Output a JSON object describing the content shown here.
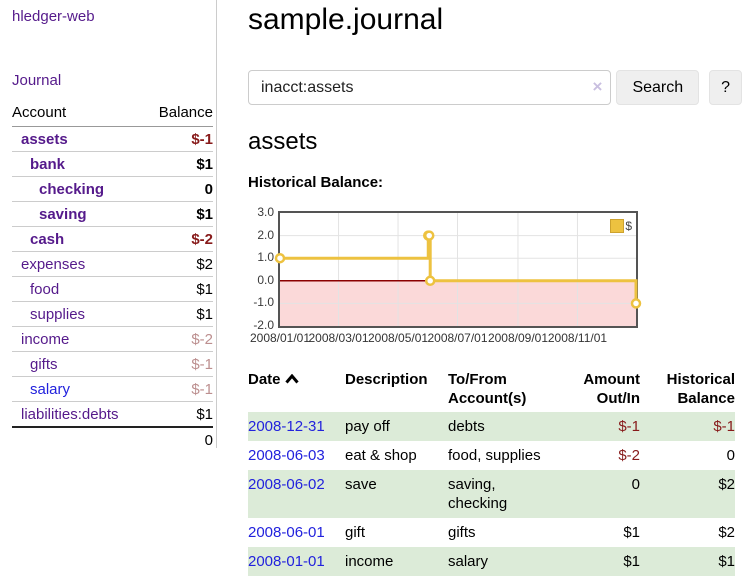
{
  "app": {
    "title": "hledger-web",
    "nav_journal": "Journal"
  },
  "sidebar": {
    "headers": {
      "account": "Account",
      "balance": "Balance"
    },
    "accounts": [
      {
        "name": "assets",
        "depth": 1,
        "bold": true,
        "link": "purple",
        "balance": "$-1",
        "bclass": "neg"
      },
      {
        "name": "bank",
        "depth": 2,
        "bold": true,
        "link": "purple",
        "balance": "$1",
        "bclass": ""
      },
      {
        "name": "checking",
        "depth": 3,
        "bold": true,
        "link": "purple",
        "balance": "0",
        "bclass": ""
      },
      {
        "name": "saving",
        "depth": 3,
        "bold": true,
        "link": "purple",
        "balance": "$1",
        "bclass": ""
      },
      {
        "name": "cash",
        "depth": 2,
        "bold": true,
        "link": "purple",
        "balance": "$-2",
        "bclass": "neg"
      },
      {
        "name": "expenses",
        "depth": 1,
        "bold": false,
        "link": "purple",
        "balance": "$2",
        "bclass": ""
      },
      {
        "name": "food",
        "depth": 2,
        "bold": false,
        "link": "purple",
        "balance": "$1",
        "bclass": ""
      },
      {
        "name": "supplies",
        "depth": 2,
        "bold": false,
        "link": "purple",
        "balance": "$1",
        "bclass": ""
      },
      {
        "name": "income",
        "depth": 1,
        "bold": false,
        "link": "purple",
        "balance": "$-2",
        "bclass": "faded"
      },
      {
        "name": "gifts",
        "depth": 2,
        "bold": false,
        "link": "purple",
        "balance": "$-1",
        "bclass": "faded"
      },
      {
        "name": "salary",
        "depth": 2,
        "bold": false,
        "link": "blue",
        "balance": "$-1",
        "bclass": "faded"
      },
      {
        "name": "liabilities:debts",
        "depth": 1,
        "bold": false,
        "link": "purple",
        "balance": "$1",
        "bclass": ""
      }
    ],
    "total": "0"
  },
  "header": {
    "title": "sample.journal"
  },
  "search": {
    "value": "inacct:assets",
    "clear_icon": "×",
    "button": "Search",
    "help_button": "?"
  },
  "account_page": {
    "title": "assets",
    "chart_label": "Historical Balance:"
  },
  "chart_data": {
    "type": "line",
    "step": true,
    "title": "Historical Balance",
    "xrange": [
      "2008-01-01",
      "2008-12-31"
    ],
    "ylim": [
      -2,
      3
    ],
    "yticks": [
      {
        "v": 3,
        "label": "3.0"
      },
      {
        "v": 2,
        "label": "2.0"
      },
      {
        "v": 1,
        "label": "1.0"
      },
      {
        "v": 0,
        "label": "0.0"
      },
      {
        "v": -1,
        "label": "-1.0"
      },
      {
        "v": -2,
        "label": "-2.0"
      }
    ],
    "xticks": [
      {
        "date": "2008-01-01",
        "label": "2008/01/01"
      },
      {
        "date": "2008-03-01",
        "label": "2008/03/01"
      },
      {
        "date": "2008-05-01",
        "label": "2008/05/01"
      },
      {
        "date": "2008-07-01",
        "label": "2008/07/01"
      },
      {
        "date": "2008-09-01",
        "label": "2008/09/01"
      },
      {
        "date": "2008-11-01",
        "label": "2008/11/01"
      }
    ],
    "series": [
      {
        "name": "$",
        "color": "#edc240",
        "points": [
          [
            "2008-01-01",
            1
          ],
          [
            "2008-06-01",
            2
          ],
          [
            "2008-06-02",
            2
          ],
          [
            "2008-06-03",
            0
          ],
          [
            "2008-12-31",
            -1
          ]
        ]
      }
    ],
    "legend": {
      "label": "$",
      "position": "top-right"
    },
    "grid": true,
    "negative_region_color": "#fbd9d9",
    "zero_line_color": "#8b0000",
    "border_color": "#545454"
  },
  "register": {
    "headers": [
      {
        "line1": "Date",
        "line2": "",
        "align": "left",
        "sorted": true
      },
      {
        "line1": "Description",
        "line2": "",
        "align": "left"
      },
      {
        "line1": "To/From",
        "line2": "Account(s)",
        "align": "left"
      },
      {
        "line1": "Amount",
        "line2": "Out/In",
        "align": "right"
      },
      {
        "line1": "Historical",
        "line2": "Balance",
        "align": "right"
      }
    ],
    "rows": [
      {
        "date": "2008-12-31",
        "description": "pay off",
        "accounts": "debts",
        "amount": "$-1",
        "amtclass": "neg",
        "balance": "$-1",
        "balclass": "neg"
      },
      {
        "date": "2008-06-03",
        "description": "eat & shop",
        "accounts": "food, supplies",
        "amount": "$-2",
        "amtclass": "neg",
        "balance": "0",
        "balclass": ""
      },
      {
        "date": "2008-06-02",
        "description": "save",
        "accounts": "saving, checking",
        "amount": "0",
        "amtclass": "",
        "balance": "$2",
        "balclass": ""
      },
      {
        "date": "2008-06-01",
        "description": "gift",
        "accounts": "gifts",
        "amount": "$1",
        "amtclass": "",
        "balance": "$2",
        "balclass": ""
      },
      {
        "date": "2008-01-01",
        "description": "income",
        "accounts": "salary",
        "amount": "$1",
        "amtclass": "",
        "balance": "$1",
        "balclass": ""
      }
    ]
  },
  "colors": {
    "link_purple": "#551A8B",
    "link_blue": "#2222dd",
    "negative": "#871a1a",
    "negative_faded": "#bc8f8f",
    "row_highlight_green": "#dcebd8",
    "chart_series_gold": "#edc240",
    "chart_negative_region": "#fbd9d9"
  }
}
